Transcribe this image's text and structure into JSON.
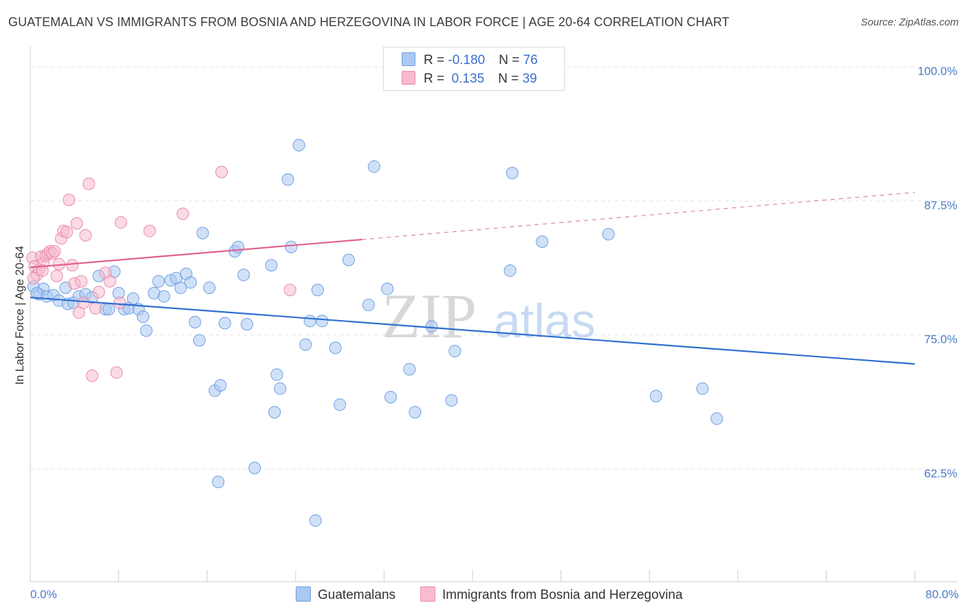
{
  "title": "GUATEMALAN VS IMMIGRANTS FROM BOSNIA AND HERZEGOVINA IN LABOR FORCE | AGE 20-64 CORRELATION CHART",
  "source": "Source: ZipAtlas.com",
  "watermark": {
    "part1": "ZIP",
    "part2": "atlas"
  },
  "legend": {
    "rows": [
      {
        "r_label": "R = ",
        "r_value": "-0.180",
        "n_label": "N = ",
        "n_value": "76",
        "color": "#aac8f0",
        "border": "#6f9fe0"
      },
      {
        "r_label": "R = ",
        "r_value": " 0.135",
        "n_label": "N = ",
        "n_value": "39",
        "color": "#f7bcd0",
        "border": "#e98aaa"
      }
    ]
  },
  "bottom_legend": [
    {
      "label": "Guatemalans",
      "color": "#aac8f0",
      "border": "#6f9fe0"
    },
    {
      "label": "Immigrants from Bosnia and Herzegovina",
      "color": "#f7bcd0",
      "border": "#e98aaa"
    }
  ],
  "chart_data": {
    "type": "scatter",
    "title": "GUATEMALAN VS IMMIGRANTS FROM BOSNIA AND HERZEGOVINA IN LABOR FORCE | AGE 20-64 CORRELATION CHART",
    "xlabel": "",
    "ylabel": "In Labor Force | Age 20-64",
    "xlim": [
      0,
      80
    ],
    "ylim": [
      52,
      102
    ],
    "x_tick_labels": [
      "0.0%",
      "80.0%"
    ],
    "y_ticks": [
      62.5,
      75.0,
      87.5,
      100.0
    ],
    "y_tick_labels": [
      "62.5%",
      "75.0%",
      "87.5%",
      "100.0%"
    ],
    "grid": true,
    "series": [
      {
        "name": "Guatemalans",
        "color": "#6f9fe0",
        "fill": "#aac8f0",
        "trend": {
          "x": [
            0,
            80
          ],
          "y": [
            78.5,
            72.3
          ],
          "color": "#2f6fd1"
        },
        "points": [
          [
            0.3,
            79.5
          ],
          [
            0.8,
            78.8
          ],
          [
            1.2,
            79.3
          ],
          [
            1.5,
            78.6
          ],
          [
            2.1,
            78.7
          ],
          [
            2.6,
            78.2
          ],
          [
            3.2,
            79.4
          ],
          [
            3.4,
            77.9
          ],
          [
            3.9,
            78.0
          ],
          [
            4.4,
            78.6
          ],
          [
            5.0,
            78.8
          ],
          [
            5.6,
            78.5
          ],
          [
            6.2,
            80.5
          ],
          [
            6.8,
            77.4
          ],
          [
            7.1,
            77.4
          ],
          [
            7.6,
            80.9
          ],
          [
            8.0,
            78.9
          ],
          [
            8.5,
            77.4
          ],
          [
            8.9,
            77.5
          ],
          [
            9.3,
            78.4
          ],
          [
            9.8,
            77.4
          ],
          [
            10.2,
            76.7
          ],
          [
            10.5,
            75.4
          ],
          [
            11.2,
            78.9
          ],
          [
            11.6,
            80.0
          ],
          [
            12.1,
            78.6
          ],
          [
            12.7,
            80.1
          ],
          [
            13.2,
            80.3
          ],
          [
            13.6,
            79.4
          ],
          [
            14.1,
            80.7
          ],
          [
            14.5,
            79.9
          ],
          [
            14.9,
            76.2
          ],
          [
            15.3,
            74.5
          ],
          [
            15.6,
            84.5
          ],
          [
            16.2,
            79.4
          ],
          [
            16.7,
            69.8
          ],
          [
            17.2,
            70.3
          ],
          [
            17.6,
            76.1
          ],
          [
            17.0,
            61.3
          ],
          [
            18.5,
            82.8
          ],
          [
            18.8,
            83.2
          ],
          [
            19.3,
            80.6
          ],
          [
            19.6,
            76.0
          ],
          [
            20.3,
            62.6
          ],
          [
            21.8,
            81.5
          ],
          [
            22.1,
            67.8
          ],
          [
            22.3,
            71.3
          ],
          [
            22.6,
            70.0
          ],
          [
            23.3,
            89.5
          ],
          [
            23.6,
            83.2
          ],
          [
            24.3,
            92.7
          ],
          [
            24.9,
            74.1
          ],
          [
            25.3,
            76.3
          ],
          [
            25.8,
            57.7
          ],
          [
            26.0,
            79.2
          ],
          [
            26.4,
            76.3
          ],
          [
            27.6,
            73.8
          ],
          [
            28.0,
            68.5
          ],
          [
            28.8,
            82.0
          ],
          [
            30.6,
            77.8
          ],
          [
            31.1,
            90.7
          ],
          [
            32.6,
            69.2
          ],
          [
            32.3,
            79.3
          ],
          [
            34.3,
            71.8
          ],
          [
            34.8,
            67.8
          ],
          [
            36.3,
            75.8
          ],
          [
            38.1,
            68.9
          ],
          [
            38.4,
            73.5
          ],
          [
            43.6,
            90.1
          ],
          [
            43.4,
            81.0
          ],
          [
            46.3,
            83.7
          ],
          [
            52.3,
            84.4
          ],
          [
            56.6,
            69.3
          ],
          [
            60.8,
            70.0
          ],
          [
            62.1,
            67.2
          ],
          [
            0.6,
            78.9
          ]
        ]
      },
      {
        "name": "Immigrants from Bosnia and Herzegovina",
        "color": "#e98aaa",
        "fill": "#f7bcd0",
        "trend": {
          "x": [
            0,
            30
          ],
          "y": [
            81.3,
            83.9
          ],
          "dashed_to": [
            80,
            88.3
          ],
          "color": "#e0608e"
        },
        "points": [
          [
            0.2,
            82.2
          ],
          [
            0.4,
            81.4
          ],
          [
            0.6,
            80.6
          ],
          [
            0.8,
            81.1
          ],
          [
            1.0,
            82.3
          ],
          [
            1.2,
            81.7
          ],
          [
            1.4,
            82.4
          ],
          [
            1.6,
            82.6
          ],
          [
            1.8,
            82.8
          ],
          [
            2.0,
            82.6
          ],
          [
            2.2,
            82.8
          ],
          [
            2.4,
            80.5
          ],
          [
            2.6,
            81.6
          ],
          [
            2.8,
            84.0
          ],
          [
            3.0,
            84.7
          ],
          [
            3.3,
            84.6
          ],
          [
            3.5,
            87.6
          ],
          [
            3.8,
            81.5
          ],
          [
            4.0,
            79.8
          ],
          [
            4.2,
            85.4
          ],
          [
            4.4,
            77.1
          ],
          [
            4.6,
            80.0
          ],
          [
            4.8,
            78.0
          ],
          [
            5.0,
            84.3
          ],
          [
            5.3,
            89.1
          ],
          [
            5.6,
            71.2
          ],
          [
            5.9,
            77.5
          ],
          [
            6.2,
            79.0
          ],
          [
            6.8,
            80.8
          ],
          [
            7.2,
            80.0
          ],
          [
            7.8,
            71.5
          ],
          [
            8.1,
            78.0
          ],
          [
            8.2,
            85.5
          ],
          [
            10.8,
            84.7
          ],
          [
            13.8,
            86.3
          ],
          [
            17.3,
            90.2
          ],
          [
            23.5,
            79.2
          ],
          [
            1.1,
            81.0
          ],
          [
            0.3,
            80.3
          ]
        ]
      }
    ]
  }
}
